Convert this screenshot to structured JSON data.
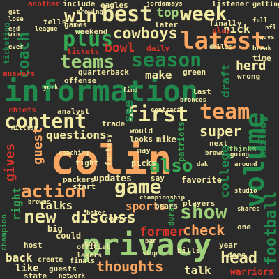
{
  "word_cloud": {
    "palette": {
      "background": "#2b2b2b",
      "dark_green": "#1f8a4c",
      "green": "#34a853",
      "light_green": "#9fd07a",
      "pale_yellow": "#f2e9a3",
      "orange": "#fba660",
      "red": "#d7352a"
    },
    "words": [
      {
        "text": "colin",
        "color": "#fba660"
      },
      {
        "text": "information",
        "color": "#1f8a4c"
      },
      {
        "text": "privacy",
        "color": "#9fd07a"
      },
      {
        "text": "latest",
        "color": "#fba660"
      },
      {
        "text": "volume",
        "color": "#1f8a4c"
      },
      {
        "text": "week",
        "color": "#f2e9a3"
      },
      {
        "text": "best",
        "color": "#f2e9a3"
      },
      {
        "text": "win",
        "color": "#f2e9a3"
      },
      {
        "text": "cowboys",
        "color": "#f2e9a3"
      },
      {
        "text": "plus",
        "color": "#34a853"
      },
      {
        "text": "season",
        "color": "#1f8a4c"
      },
      {
        "text": "teams",
        "color": "#9fd07a"
      },
      {
        "text": "content",
        "color": "#f2e9a3"
      },
      {
        "text": "first",
        "color": "#f2e9a3"
      },
      {
        "text": "team",
        "color": "#fba660"
      },
      {
        "text": "game",
        "color": "#f2e9a3"
      },
      {
        "text": "also",
        "color": "#34a853"
      },
      {
        "text": "show",
        "color": "#9fd07a"
      },
      {
        "text": "new",
        "color": "#f2e9a3"
      },
      {
        "text": "discuss",
        "color": "#f2e9a3"
      },
      {
        "text": "action",
        "color": "#fba660"
      },
      {
        "text": "football",
        "color": "#1f8a4c"
      },
      {
        "text": "thoughts",
        "color": "#fba660"
      },
      {
        "text": "head",
        "color": "#f2e9a3"
      },
      {
        "text": "check",
        "color": "#fba660"
      },
      {
        "text": "talks",
        "color": "#f2e9a3"
      },
      {
        "text": "sports",
        "color": "#fba660"
      },
      {
        "text": "former",
        "color": "#d7352a"
      },
      {
        "text": "top",
        "color": "#9fd07a"
      },
      {
        "text": "nick",
        "color": "#f2e9a3"
      },
      {
        "text": "herd",
        "color": "#f2e9a3"
      },
      {
        "text": "coach",
        "color": "#1f8a4c"
      },
      {
        "text": "make",
        "color": "#f2e9a3"
      },
      {
        "text": "bowl",
        "color": "#d7352a"
      },
      {
        "text": "questions",
        "color": "#f2e9a3"
      },
      {
        "text": "super",
        "color": "#f2e9a3"
      },
      {
        "text": "guest",
        "color": "#fba660"
      },
      {
        "text": "gives",
        "color": "#d7352a"
      },
      {
        "text": "college",
        "color": "#1f8a4c"
      },
      {
        "text": "draft",
        "color": "#1f8a4c"
      },
      {
        "text": "see",
        "color": "#1f8a4c"
      },
      {
        "text": "thinks",
        "color": "#9fd07a"
      },
      {
        "text": "mailbag",
        "color": "#1f8a4c"
      },
      {
        "text": "patriots",
        "color": "#34a853"
      },
      {
        "text": "right",
        "color": "#34a853"
      },
      {
        "text": "back",
        "color": "#f2e9a3"
      },
      {
        "text": "like",
        "color": "#f2e9a3"
      },
      {
        "text": "talk",
        "color": "#f2e9a3"
      },
      {
        "text": "warriors",
        "color": "#d7352a"
      },
      {
        "text": "updates",
        "color": "#f2e9a3"
      },
      {
        "text": "favorite",
        "color": "#f2e9a3"
      },
      {
        "text": "picks",
        "color": "#f2e9a3"
      },
      {
        "text": "mike",
        "color": "#f2e9a3"
      },
      {
        "text": "fight",
        "color": "#f2e9a3"
      },
      {
        "text": "would",
        "color": "#f2e9a3"
      },
      {
        "text": "looks",
        "color": "#f2e9a3"
      },
      {
        "text": "quarterback",
        "color": "#f2e9a3"
      },
      {
        "text": "chiefs",
        "color": "#d7352a"
      },
      {
        "text": "trade",
        "color": "#f2e9a3"
      },
      {
        "text": "analyst",
        "color": "#f2e9a3"
      },
      {
        "text": "players",
        "color": "#f2e9a3"
      },
      {
        "text": "packers",
        "color": "#f2e9a3"
      },
      {
        "text": "could",
        "color": "#f2e9a3"
      },
      {
        "text": "big",
        "color": "#f2e9a3"
      },
      {
        "text": "host",
        "color": "#f2e9a3"
      },
      {
        "text": "state",
        "color": "#f2e9a3"
      },
      {
        "text": "guests",
        "color": "#f2e9a3"
      },
      {
        "text": "next",
        "color": "#f2e9a3"
      },
      {
        "text": "durant",
        "color": "#34a853"
      },
      {
        "text": "champion",
        "color": "#34a853"
      },
      {
        "text": "tickets",
        "color": "#d7352a"
      },
      {
        "text": "answers",
        "color": "#d7352a"
      },
      {
        "text": "games",
        "color": "#f2e9a3"
      },
      {
        "text": "tells",
        "color": "#f2e9a3"
      },
      {
        "text": "weekend",
        "color": "#f2e9a3"
      },
      {
        "text": "eagles",
        "color": "#f2e9a3"
      },
      {
        "text": "include",
        "color": "#f2e9a3"
      },
      {
        "text": "another",
        "color": "#d7352a"
      },
      {
        "text": "later",
        "color": "#f2e9a3"
      },
      {
        "text": "finally",
        "color": "#f2e9a3"
      },
      {
        "text": "play",
        "color": "#d7352a"
      },
      {
        "text": "listener",
        "color": "#f2e9a3"
      },
      {
        "text": "getting",
        "color": "#f2e9a3"
      },
      {
        "text": "ticketing",
        "color": "#1f8a4c"
      },
      {
        "text": "daily",
        "color": "#d7352a"
      },
      {
        "text": "green",
        "color": "#f2e9a3"
      },
      {
        "text": "wrong",
        "color": "#f2e9a3"
      },
      {
        "text": "time",
        "color": "#f2e9a3"
      },
      {
        "text": "last",
        "color": "#f2e9a3"
      },
      {
        "text": "offense",
        "color": "#f2e9a3"
      },
      {
        "text": "fantasy",
        "color": "#f2e9a3"
      },
      {
        "text": "start",
        "color": "#f2e9a3"
      },
      {
        "text": "say",
        "color": "#f2e9a3"
      },
      {
        "text": "may",
        "color": "#f2e9a3"
      },
      {
        "text": "one",
        "color": "#f2e9a3"
      },
      {
        "text": "bears",
        "color": "#f2e9a3"
      },
      {
        "text": "year",
        "color": "#f2e9a3"
      },
      {
        "text": "does",
        "color": "#f2e9a3"
      },
      {
        "text": "bills",
        "color": "#f2e9a3"
      },
      {
        "text": "fox",
        "color": "#f2e9a3"
      },
      {
        "text": "official",
        "color": "#f2e9a3"
      },
      {
        "text": "lakers",
        "color": "#f2e9a3"
      },
      {
        "text": "network",
        "color": "#f2e9a3"
      },
      {
        "text": "create",
        "color": "#f2e9a3"
      },
      {
        "text": "finals",
        "color": "#f2e9a3"
      },
      {
        "text": "coaching",
        "color": "#f2e9a3"
      },
      {
        "text": "jordan",
        "color": "#f2e9a3"
      },
      {
        "text": "growing",
        "color": "#f2e9a3"
      },
      {
        "text": "york",
        "color": "#f2e9a3"
      },
      {
        "text": "millman",
        "color": "#f2e9a3"
      },
      {
        "text": "cowherd",
        "color": "#f2e9a3"
      },
      {
        "text": "dak",
        "color": "#f2e9a3"
      },
      {
        "text": "championship",
        "color": "#f2e9a3"
      },
      {
        "text": "studio",
        "color": "#f2e9a3"
      },
      {
        "text": "around",
        "color": "#f2e9a3"
      },
      {
        "text": "shares",
        "color": "#f2e9a3"
      },
      {
        "text": "broncos",
        "color": "#f2e9a3"
      },
      {
        "text": "dallas",
        "color": "#f2e9a3"
      },
      {
        "text": "nfl",
        "color": "#f2e9a3"
      },
      {
        "text": "break",
        "color": "#f2e9a3"
      },
      {
        "text": "contract",
        "color": "#f2e9a3"
      },
      {
        "text": "find",
        "color": "#f2e9a3"
      },
      {
        "text": "going",
        "color": "#f2e9a3"
      },
      {
        "text": "league",
        "color": "#f2e9a3"
      },
      {
        "text": "says",
        "color": "#f2e9a3"
      },
      {
        "text": "stop",
        "color": "#f2e9a3"
      },
      {
        "text": "baker",
        "color": "#f2e9a3"
      },
      {
        "text": "brown",
        "color": "#f2e9a3"
      },
      {
        "text": "browns",
        "color": "#f2e9a3"
      },
      {
        "text": "bar",
        "color": "#f2e9a3"
      },
      {
        "text": "full",
        "color": "#f2e9a3"
      },
      {
        "text": "guys",
        "color": "#f2e9a3"
      },
      {
        "text": "ever",
        "color": "#f2e9a3"
      },
      {
        "text": "win",
        "color": "#f2e9a3"
      },
      {
        "text": "end",
        "color": "#f2e9a3"
      },
      {
        "text": "lose",
        "color": "#f2e9a3"
      },
      {
        "text": "get",
        "color": "#f2e9a3"
      }
    ]
  }
}
